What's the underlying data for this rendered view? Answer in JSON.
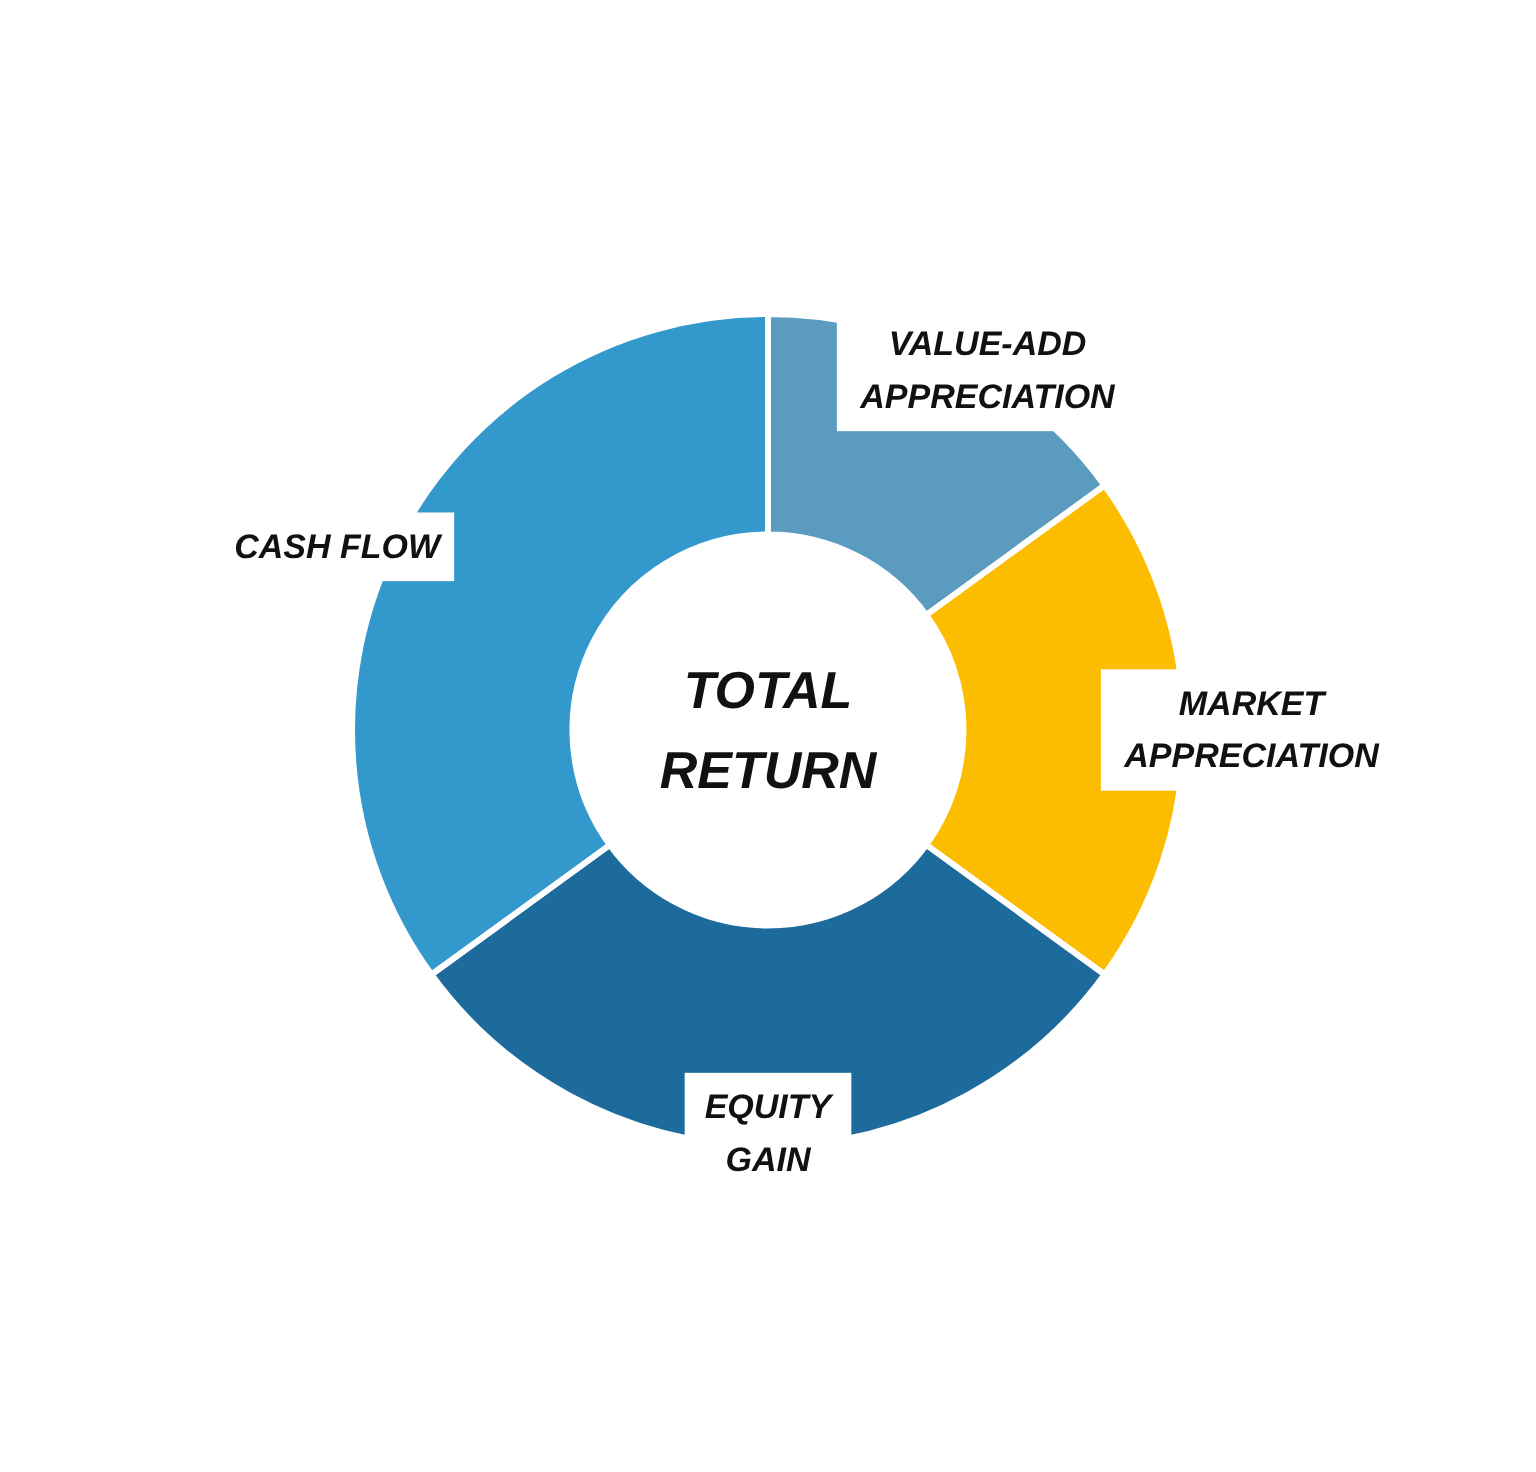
{
  "chart_data": {
    "type": "donut",
    "title": "TOTAL RETURN",
    "categories": [
      "VALUE-ADD APPRECIATION",
      "MARKET APPRECIATION",
      "EQUITY GAIN",
      "CASH FLOW"
    ],
    "values": [
      15,
      20,
      30,
      35
    ],
    "colors": [
      "#5b9bc0",
      "#fcbd00",
      "#1c6b9c",
      "#3399cc"
    ]
  }
}
